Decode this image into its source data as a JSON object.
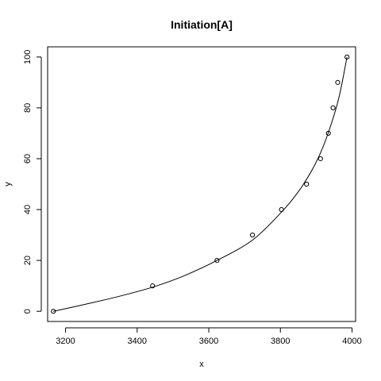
{
  "chart_data": {
    "type": "scatter",
    "title": "Initiation[A]",
    "xlabel": "x",
    "ylabel": "y",
    "xlim": [
      3150,
      4010
    ],
    "ylim": [
      -4,
      104
    ],
    "xticks": [
      3200,
      3400,
      3600,
      3800,
      4000
    ],
    "yticks": [
      0,
      20,
      40,
      60,
      80,
      100
    ],
    "grid": false,
    "legend": "none",
    "series": [
      {
        "kind": "points",
        "x": [
          3166,
          3443,
          3623,
          3722,
          3803,
          3873,
          3912,
          3934,
          3947,
          3960,
          3986
        ],
        "y": [
          0,
          10,
          20,
          30,
          40,
          50,
          60,
          70,
          80,
          90,
          100
        ]
      },
      {
        "kind": "curve",
        "x": [
          3166,
          3250,
          3350,
          3443,
          3530,
          3623,
          3722,
          3803,
          3850,
          3890,
          3920,
          3945,
          3965,
          3986
        ],
        "y": [
          0,
          2.6,
          5.9,
          9.5,
          13.9,
          20,
          28,
          39,
          47,
          56,
          65,
          75,
          85,
          100
        ]
      }
    ],
    "colors": {
      "points": "#000000",
      "curve": "#000000",
      "axes": "#000000"
    }
  }
}
